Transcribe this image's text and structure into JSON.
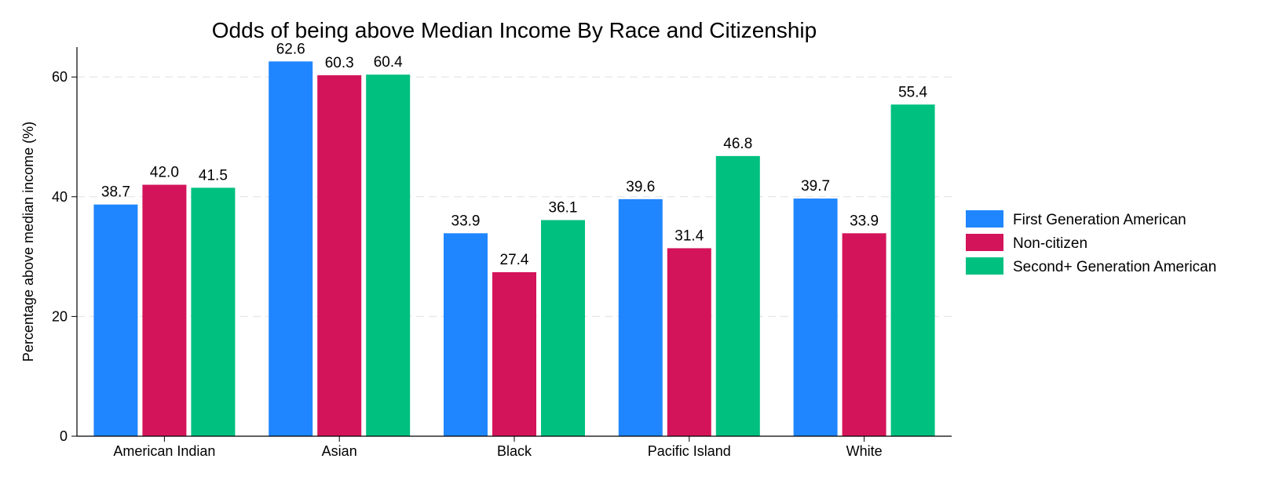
{
  "chart_data": {
    "type": "bar",
    "title": "Odds of being above Median Income By Race and Citizenship",
    "xlabel": "",
    "ylabel": "Percentage above median income (%)",
    "ylim": [
      0,
      65
    ],
    "yticks": [
      0,
      20,
      40,
      60
    ],
    "grid": true,
    "legend_position": "right",
    "categories": [
      "American Indian",
      "Asian",
      "Black",
      "Pacific Island",
      "White"
    ],
    "series": [
      {
        "name": "First Generation American",
        "color": "#1f86ff",
        "values": [
          38.7,
          62.6,
          33.9,
          39.6,
          39.7
        ]
      },
      {
        "name": "Non-citizen",
        "color": "#d4145a",
        "values": [
          42.0,
          60.3,
          27.4,
          31.4,
          33.9
        ]
      },
      {
        "name": "Second+ Generation American",
        "color": "#00c080",
        "values": [
          41.5,
          60.4,
          36.1,
          46.8,
          55.4
        ]
      }
    ]
  }
}
